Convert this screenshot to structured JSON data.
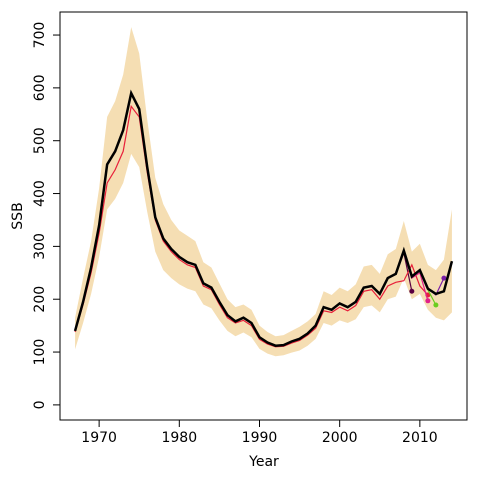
{
  "chart_data": {
    "type": "line",
    "xlabel": "Year",
    "ylabel": "SSB",
    "x": [
      1967,
      1968,
      1969,
      1970,
      1971,
      1972,
      1973,
      1974,
      1975,
      1976,
      1977,
      1978,
      1979,
      1980,
      1981,
      1982,
      1983,
      1984,
      1985,
      1986,
      1987,
      1988,
      1989,
      1990,
      1991,
      1992,
      1993,
      1994,
      1995,
      1996,
      1997,
      1998,
      1999,
      2000,
      2001,
      2002,
      2003,
      2004,
      2005,
      2006,
      2007,
      2008,
      2009,
      2010,
      2011,
      2012,
      2013,
      2014
    ],
    "band": {
      "color": "#f5deb3",
      "upper": [
        165,
        240,
        310,
        410,
        545,
        575,
        625,
        715,
        665,
        540,
        430,
        380,
        350,
        330,
        320,
        310,
        270,
        260,
        230,
        200,
        185,
        190,
        180,
        150,
        138,
        130,
        132,
        140,
        148,
        158,
        172,
        215,
        208,
        222,
        215,
        228,
        262,
        265,
        248,
        285,
        295,
        348,
        290,
        305,
        265,
        255,
        275,
        370
      ],
      "lower": [
        105,
        155,
        210,
        280,
        370,
        390,
        420,
        475,
        450,
        365,
        290,
        255,
        240,
        228,
        220,
        215,
        190,
        183,
        160,
        140,
        130,
        137,
        128,
        106,
        97,
        92,
        94,
        99,
        103,
        112,
        125,
        155,
        150,
        160,
        155,
        162,
        185,
        188,
        175,
        200,
        205,
        240,
        200,
        210,
        180,
        165,
        160,
        175
      ]
    },
    "series": [
      {
        "color": "#5a0040",
        "values": [
          140,
          195,
          260,
          340,
          455,
          480,
          520,
          590,
          560,
          450,
          355,
          315,
          295,
          280,
          270,
          265,
          230,
          222,
          195,
          170,
          158,
          165,
          155,
          128,
          118,
          112,
          113,
          120,
          125,
          135,
          150,
          185,
          180,
          192,
          185,
          195,
          222,
          225,
          210,
          240,
          248,
          288,
          215,
          null,
          null,
          null,
          null,
          null
        ]
      },
      {
        "color": "#e8203a",
        "values": [
          138,
          190,
          250,
          325,
          420,
          445,
          480,
          565,
          545,
          440,
          350,
          310,
          290,
          275,
          265,
          260,
          225,
          218,
          190,
          165,
          155,
          160,
          150,
          124,
          115,
          110,
          111,
          117,
          122,
          132,
          145,
          178,
          175,
          185,
          178,
          188,
          215,
          218,
          200,
          225,
          232,
          235,
          265,
          225,
          208,
          null,
          null,
          null
        ]
      },
      {
        "color": "#e0208a",
        "values": [
          140,
          195,
          260,
          340,
          455,
          480,
          520,
          590,
          560,
          450,
          355,
          315,
          295,
          280,
          270,
          265,
          230,
          222,
          195,
          170,
          158,
          165,
          155,
          128,
          118,
          112,
          113,
          120,
          125,
          135,
          150,
          185,
          180,
          192,
          185,
          195,
          222,
          225,
          210,
          240,
          248,
          290,
          240,
          250,
          197,
          null,
          null,
          null
        ]
      },
      {
        "color": "#6acd1e",
        "values": [
          140,
          195,
          260,
          340,
          455,
          480,
          520,
          590,
          560,
          450,
          355,
          315,
          295,
          280,
          270,
          265,
          230,
          222,
          195,
          170,
          158,
          165,
          155,
          128,
          118,
          112,
          113,
          120,
          125,
          135,
          150,
          185,
          180,
          192,
          185,
          195,
          222,
          225,
          210,
          240,
          248,
          292,
          242,
          254,
          218,
          189,
          null,
          null
        ]
      },
      {
        "color": "#7a1fa8",
        "values": [
          140,
          195,
          260,
          340,
          455,
          480,
          520,
          590,
          560,
          450,
          355,
          315,
          295,
          280,
          270,
          265,
          230,
          222,
          195,
          170,
          158,
          165,
          155,
          128,
          118,
          112,
          113,
          120,
          125,
          135,
          150,
          185,
          180,
          192,
          185,
          195,
          222,
          225,
          210,
          240,
          248,
          292,
          243,
          255,
          220,
          208,
          240,
          null
        ]
      },
      {
        "color": "#000000",
        "main": true,
        "values": [
          140,
          195,
          260,
          340,
          455,
          480,
          520,
          590,
          560,
          450,
          355,
          315,
          295,
          280,
          270,
          265,
          230,
          222,
          195,
          170,
          158,
          165,
          155,
          128,
          118,
          112,
          113,
          120,
          125,
          135,
          150,
          185,
          180,
          192,
          185,
          195,
          222,
          225,
          210,
          240,
          248,
          292,
          243,
          255,
          220,
          210,
          215,
          272
        ]
      }
    ],
    "xlim": [
      1965.12,
      2015.88
    ],
    "ylim": [
      -28.6,
      743.6
    ],
    "xticks": [
      1970,
      1980,
      1990,
      2000,
      2010
    ],
    "yticks": [
      0,
      100,
      200,
      300,
      400,
      500,
      600,
      700
    ]
  }
}
